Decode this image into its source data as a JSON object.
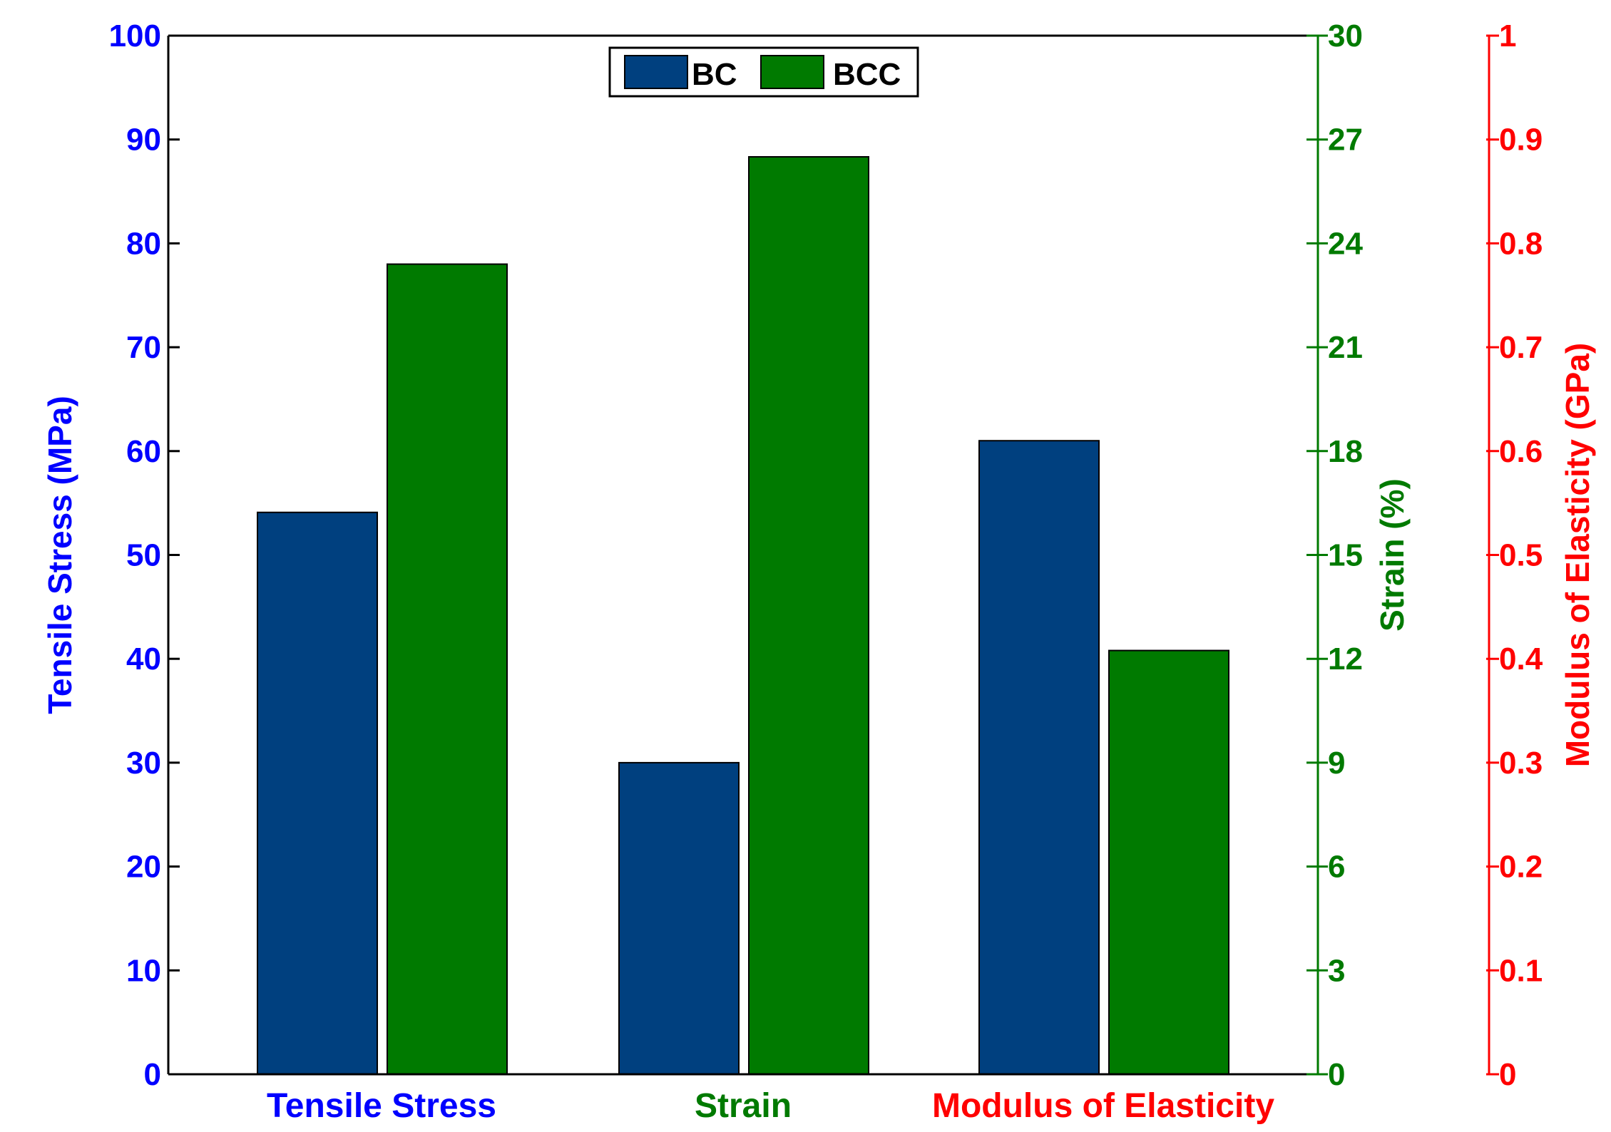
{
  "chart_data": {
    "type": "bar",
    "categories": [
      "Tensile Stress",
      "Strain",
      "Modulus of Elasticity"
    ],
    "series": [
      {
        "name": "BC",
        "values": [
          54.1,
          9.0,
          0.61
        ]
      },
      {
        "name": "BCC",
        "values": [
          78.0,
          26.5,
          0.408
        ]
      }
    ],
    "axes": [
      {
        "side": "left",
        "label": "Tensile Stress (MPa)",
        "color": "#0000ff",
        "range": [
          0,
          100
        ],
        "ticks": [
          "0",
          "10",
          "20",
          "30",
          "40",
          "50",
          "60",
          "70",
          "80",
          "90",
          "100"
        ]
      },
      {
        "side": "right",
        "label": "Strain (%)",
        "color": "#007a00",
        "range": [
          0,
          30
        ],
        "ticks": [
          "0",
          "3",
          "6",
          "9",
          "12",
          "15",
          "18",
          "21",
          "24",
          "27",
          "30"
        ]
      },
      {
        "side": "right-outer",
        "label": "Modulus of Elasticity (GPa)",
        "color": "#ff0000",
        "range": [
          0,
          1
        ],
        "ticks": [
          "0",
          "0.1",
          "0.2",
          "0.3",
          "0.4",
          "0.5",
          "0.6",
          "0.7",
          "0.8",
          "0.9",
          "1"
        ]
      }
    ],
    "category_axis_index": [
      0,
      1,
      2
    ],
    "legend_position": "top-center",
    "grid": false
  },
  "colors": {
    "series": [
      "#00407f",
      "#007a00"
    ]
  }
}
